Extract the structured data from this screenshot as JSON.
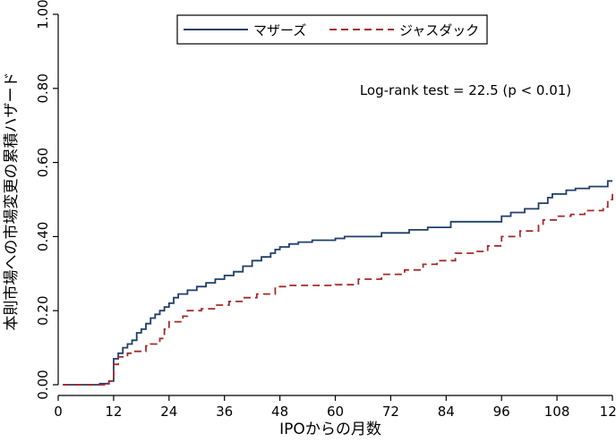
{
  "chart_data": {
    "type": "line",
    "step": true,
    "xlabel": "IPOからの月数",
    "ylabel": "本則市場への市場変更の累積ハザード",
    "xlim": [
      0,
      120
    ],
    "ylim": [
      0,
      1
    ],
    "xticks": [
      0,
      12,
      24,
      36,
      48,
      60,
      72,
      84,
      96,
      108,
      120
    ],
    "xtick_labels": [
      "0",
      "12",
      "24",
      "36",
      "48",
      "60",
      "72",
      "84",
      "96",
      "108",
      "120"
    ],
    "yticks": [
      0,
      0.2,
      0.4,
      0.6,
      0.8,
      1.0
    ],
    "ytick_labels": [
      "0.00",
      "0.20",
      "0.40",
      "0.60",
      "0.80",
      "1.00"
    ],
    "grid": false,
    "legend_position": "top-center",
    "annotation": "Log-rank test = 22.5 (p < 0.01)",
    "series": [
      {
        "name": "マザーズ",
        "color": "#1f3f6a",
        "dash": "solid",
        "points": [
          [
            1,
            0
          ],
          [
            7,
            0
          ],
          [
            9,
            0.003
          ],
          [
            11,
            0.01
          ],
          [
            12,
            0.07
          ],
          [
            13,
            0.085
          ],
          [
            14,
            0.1
          ],
          [
            15,
            0.11
          ],
          [
            16,
            0.12
          ],
          [
            17,
            0.14
          ],
          [
            18,
            0.15
          ],
          [
            19,
            0.165
          ],
          [
            20,
            0.18
          ],
          [
            21,
            0.19
          ],
          [
            22,
            0.2
          ],
          [
            23,
            0.21
          ],
          [
            24,
            0.22
          ],
          [
            25,
            0.235
          ],
          [
            26,
            0.245
          ],
          [
            28,
            0.255
          ],
          [
            30,
            0.265
          ],
          [
            32,
            0.275
          ],
          [
            34,
            0.285
          ],
          [
            36,
            0.295
          ],
          [
            38,
            0.305
          ],
          [
            40,
            0.32
          ],
          [
            42,
            0.335
          ],
          [
            44,
            0.345
          ],
          [
            46,
            0.355
          ],
          [
            47,
            0.365
          ],
          [
            48,
            0.372
          ],
          [
            50,
            0.38
          ],
          [
            52,
            0.385
          ],
          [
            55,
            0.39
          ],
          [
            60,
            0.395
          ],
          [
            62,
            0.4
          ],
          [
            70,
            0.41
          ],
          [
            76,
            0.418
          ],
          [
            80,
            0.425
          ],
          [
            85,
            0.44
          ],
          [
            96,
            0.455
          ],
          [
            98,
            0.465
          ],
          [
            101,
            0.475
          ],
          [
            104,
            0.49
          ],
          [
            106,
            0.505
          ],
          [
            107,
            0.515
          ],
          [
            110,
            0.525
          ],
          [
            112,
            0.53
          ],
          [
            115,
            0.535
          ],
          [
            119,
            0.55
          ],
          [
            120,
            0.55
          ]
        ]
      },
      {
        "name": "ジャスダック",
        "color": "#a52a2a",
        "dash": "dashed",
        "points": [
          [
            1,
            0
          ],
          [
            8,
            0
          ],
          [
            10,
            0.003
          ],
          [
            11,
            0.01
          ],
          [
            12,
            0.055
          ],
          [
            13,
            0.075
          ],
          [
            15,
            0.085
          ],
          [
            16,
            0.09
          ],
          [
            19,
            0.105
          ],
          [
            20,
            0.11
          ],
          [
            22,
            0.125
          ],
          [
            23,
            0.15
          ],
          [
            24,
            0.17
          ],
          [
            27,
            0.185
          ],
          [
            28,
            0.2
          ],
          [
            31,
            0.205
          ],
          [
            34,
            0.215
          ],
          [
            37,
            0.225
          ],
          [
            40,
            0.235
          ],
          [
            43,
            0.245
          ],
          [
            47,
            0.265
          ],
          [
            50,
            0.268
          ],
          [
            60,
            0.27
          ],
          [
            65,
            0.285
          ],
          [
            70,
            0.298
          ],
          [
            75,
            0.31
          ],
          [
            79,
            0.325
          ],
          [
            82,
            0.335
          ],
          [
            86,
            0.355
          ],
          [
            90,
            0.36
          ],
          [
            93,
            0.375
          ],
          [
            96,
            0.4
          ],
          [
            100,
            0.415
          ],
          [
            104,
            0.43
          ],
          [
            105,
            0.445
          ],
          [
            108,
            0.455
          ],
          [
            111,
            0.46
          ],
          [
            114,
            0.47
          ],
          [
            118,
            0.48
          ],
          [
            119,
            0.5
          ],
          [
            120,
            0.515
          ]
        ]
      }
    ]
  }
}
